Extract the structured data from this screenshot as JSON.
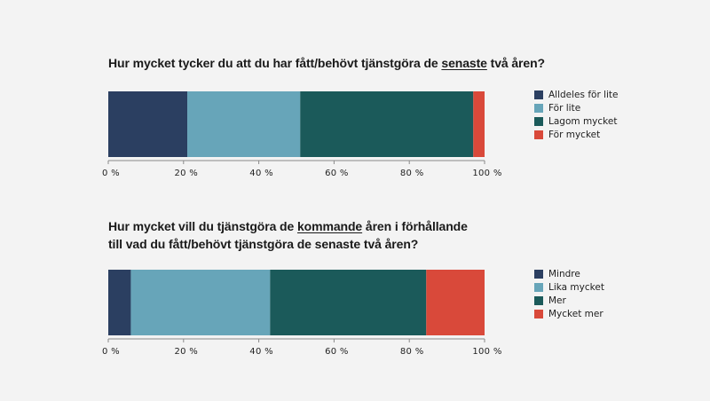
{
  "chart_data": [
    {
      "type": "bar",
      "orientation": "horizontal",
      "stacked": true,
      "title_parts": [
        {
          "text": "Hur mycket tycker du att du har fått/behövt tjänstgöra de ",
          "underline": false
        },
        {
          "text": "senaste",
          "underline": true
        },
        {
          "text": " två åren?",
          "underline": false
        }
      ],
      "series": [
        {
          "name": "Alldeles för lite",
          "value": 21,
          "color": "#2b3f61"
        },
        {
          "name": "För lite",
          "value": 30,
          "color": "#67a5b9"
        },
        {
          "name": "Lagom mycket",
          "value": 46,
          "color": "#1b5a5a"
        },
        {
          "name": "För mycket",
          "value": 3,
          "color": "#d9493a"
        }
      ],
      "xlim": [
        0,
        100
      ],
      "ticks": [
        "0 %",
        "20 %",
        "40 %",
        "60 %",
        "80 %",
        "100 %"
      ],
      "legend_position": "right"
    },
    {
      "type": "bar",
      "orientation": "horizontal",
      "stacked": true,
      "title_lines": [
        [
          {
            "text": "Hur mycket vill du tjänstgöra de ",
            "underline": false
          },
          {
            "text": "kommande",
            "underline": true
          },
          {
            "text": " åren i förhållande",
            "underline": false
          }
        ],
        [
          {
            "text": "till vad du fått/behövt tjänstgöra de senaste två åren?",
            "underline": false
          }
        ]
      ],
      "series": [
        {
          "name": "Mindre",
          "value": 6,
          "color": "#2b3f61"
        },
        {
          "name": "Lika mycket",
          "value": 37,
          "color": "#67a5b9"
        },
        {
          "name": "Mer",
          "value": 41.5,
          "color": "#1b5a5a"
        },
        {
          "name": "Mycket mer",
          "value": 15.5,
          "color": "#d9493a"
        }
      ],
      "xlim": [
        0,
        100
      ],
      "ticks": [
        "0 %",
        "20 %",
        "40 %",
        "60 %",
        "80 %",
        "100 %"
      ],
      "legend_position": "right"
    }
  ]
}
